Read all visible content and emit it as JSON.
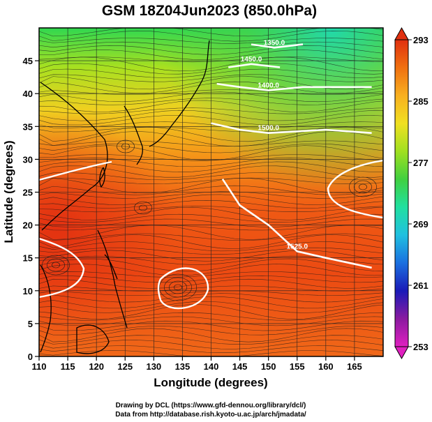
{
  "chart_data": {
    "type": "heatmap",
    "title": "GSM 18Z04Jun2023 (850.0hPa)",
    "xlabel": "Longitude (degrees)",
    "ylabel": "Latitude  (degrees)",
    "xlim": [
      110,
      170
    ],
    "ylim": [
      0,
      50
    ],
    "x_ticks": [
      110,
      115,
      120,
      125,
      130,
      135,
      140,
      145,
      150,
      155,
      160,
      165
    ],
    "y_ticks": [
      0,
      5,
      10,
      15,
      20,
      25,
      30,
      35,
      40,
      45
    ],
    "colorbar": {
      "min": 253,
      "max": 293,
      "tick_values": [
        253,
        261,
        269,
        277,
        285,
        293
      ],
      "tick_labels": [
        "253",
        "261",
        "269",
        "277",
        "285",
        "293"
      ],
      "colors": [
        "#e020c0",
        "#8a1aa0",
        "#1a1ab8",
        "#1a70e0",
        "#20c0e0",
        "#20e0a0",
        "#40d040",
        "#a0e020",
        "#f0e020",
        "#f8b020",
        "#f07010",
        "#e03010"
      ]
    },
    "contours": [
      {
        "label": "1350.0",
        "points": [
          [
            147,
            47.5
          ],
          [
            151,
            47
          ],
          [
            156,
            47.5
          ]
        ]
      },
      {
        "label": "1400.0",
        "points": [
          [
            141,
            41.5
          ],
          [
            145,
            41
          ],
          [
            150,
            40.5
          ],
          [
            156,
            41
          ],
          [
            168,
            41
          ]
        ]
      },
      {
        "label": "1450.0",
        "points": [
          [
            143,
            44
          ],
          [
            147,
            44.5
          ],
          [
            152,
            44
          ]
        ]
      },
      {
        "label": "1500.0",
        "points": [
          [
            140,
            35.5
          ],
          [
            145,
            34.5
          ],
          [
            150,
            34
          ],
          [
            160,
            34.5
          ],
          [
            168,
            34
          ]
        ]
      },
      {
        "label": "1525.0",
        "points": [
          [
            142,
            27
          ],
          [
            145,
            23
          ],
          [
            150,
            20
          ],
          [
            155,
            16
          ],
          [
            160,
            15
          ],
          [
            168,
            13.5
          ]
        ]
      }
    ],
    "vector_field": "wind",
    "credits": [
      "Drawing by DCL (https://www.gfd-dennou.org/library/dcl/)",
      "Data from http://database.rish.kyoto-u.ac.jp/arch/jmadata/"
    ]
  }
}
